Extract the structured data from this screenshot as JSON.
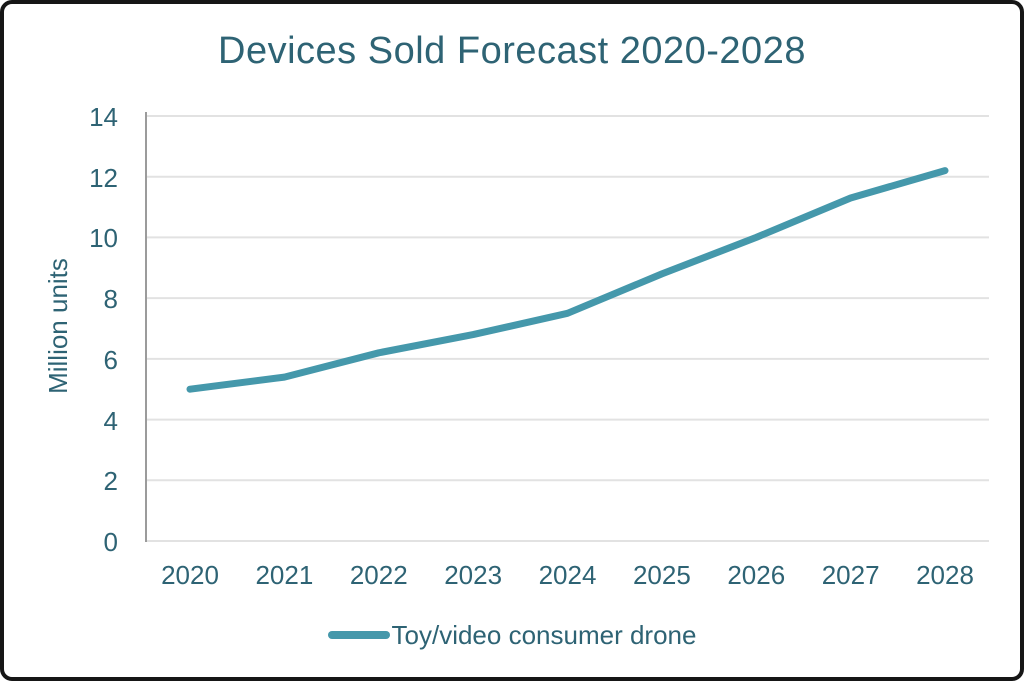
{
  "frame": {
    "background": "#ffffff",
    "border_color": "#161616"
  },
  "chart_data": {
    "type": "line",
    "title": "Devices Sold Forecast 2020-2028",
    "ylabel": "Million units",
    "xlabel": "",
    "categories": [
      "2020",
      "2021",
      "2022",
      "2023",
      "2024",
      "2025",
      "2026",
      "2027",
      "2028"
    ],
    "series": [
      {
        "name": "Toy/video consumer drone",
        "color": "#4598ab",
        "values": [
          5.0,
          5.4,
          6.2,
          6.8,
          7.5,
          8.8,
          10.0,
          11.3,
          12.2
        ]
      }
    ],
    "ylim": [
      0,
      14
    ],
    "yticks": [
      0,
      2,
      4,
      6,
      8,
      10,
      12,
      14
    ],
    "grid": "horizontal",
    "gridline_color": "#e2e2e2",
    "axis_color": "#9b9b9b",
    "text_color": "#2e6374",
    "legend_position": "bottom"
  }
}
